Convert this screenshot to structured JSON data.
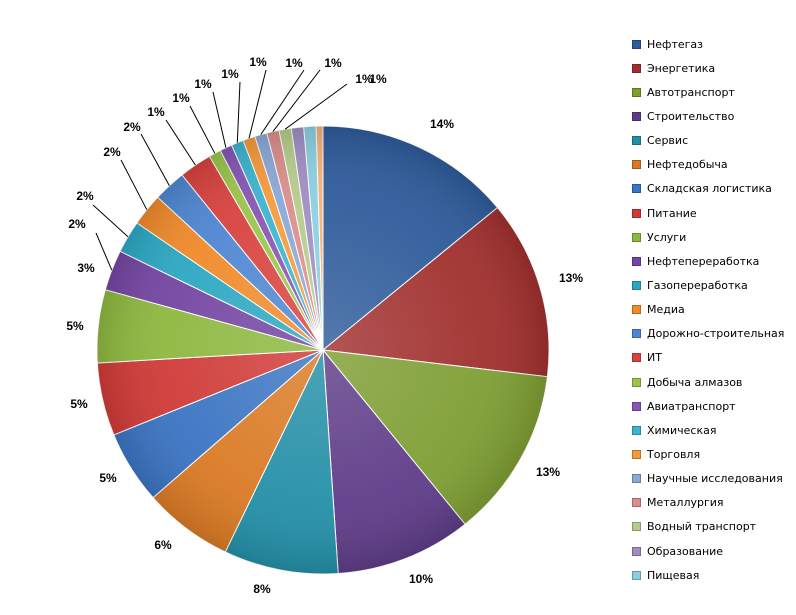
{
  "chart_data": {
    "type": "pie",
    "title": "",
    "legend_position": "right",
    "slices": [
      {
        "name": "Нефтегаз",
        "label": "14%",
        "value": 14.4,
        "color": "#2E5B9A"
      },
      {
        "name": "Энергетика",
        "label": "13%",
        "value": 13.2,
        "color": "#A0302E"
      },
      {
        "name": "Автотранспорт",
        "label": "13%",
        "value": 12.6,
        "color": "#7E9E33"
      },
      {
        "name": "Строительство",
        "label": "10%",
        "value": 10.0,
        "color": "#5E3C88"
      },
      {
        "name": "Сервис",
        "label": "8%",
        "value": 8.4,
        "color": "#238FA7"
      },
      {
        "name": "Нефтедобыча",
        "label": "6%",
        "value": 6.6,
        "color": "#DA7A24"
      },
      {
        "name": "Складская логистика",
        "label": "5%",
        "value": 5.4,
        "color": "#3A74C2"
      },
      {
        "name": "Питание",
        "label": "5%",
        "value": 5.4,
        "color": "#CF3A37"
      },
      {
        "name": "Услуги",
        "label": "5%",
        "value": 5.4,
        "color": "#8DB83F"
      },
      {
        "name": "Нефтепереработка",
        "label": "3%",
        "value": 3.0,
        "color": "#7445A2"
      },
      {
        "name": "Газопереработка",
        "label": "2%",
        "value": 2.4,
        "color": "#2CA7C3"
      },
      {
        "name": "Медиа",
        "label": "2%",
        "value": 2.4,
        "color": "#F08A2A"
      },
      {
        "name": "Дорожно-строительная",
        "label": "2%",
        "value": 2.4,
        "color": "#4E86D2"
      },
      {
        "name": "ИТ",
        "label": "2%",
        "value": 2.4,
        "color": "#D8423E"
      },
      {
        "name": "Добыча алмазов",
        "label": "1%",
        "value": 0.9,
        "color": "#9BC44A"
      },
      {
        "name": "Авиатранспорт",
        "label": "1%",
        "value": 0.9,
        "color": "#8656B4"
      },
      {
        "name": "Химическая",
        "label": "1%",
        "value": 0.9,
        "color": "#3CB4CF"
      },
      {
        "name": "Торговля",
        "label": "1%",
        "value": 0.9,
        "color": "#F59A3D"
      },
      {
        "name": "Научные исследования",
        "label": "1%",
        "value": 0.9,
        "color": "#8AA8D6"
      },
      {
        "name": "Металлургия",
        "label": "1%",
        "value": 0.9,
        "color": "#D98E8C"
      },
      {
        "name": "Водный транспорт",
        "label": "1%",
        "value": 0.9,
        "color": "#B5CC8A"
      },
      {
        "name": "Образование",
        "label": "1%",
        "value": 0.9,
        "color": "#A08DC2"
      },
      {
        "name": "Пищевая",
        "label": "1%",
        "value": 0.9,
        "color": "#8ACFE0"
      },
      {
        "name": "",
        "label": "",
        "value": 0.5,
        "color": "#F6B07A"
      }
    ]
  }
}
